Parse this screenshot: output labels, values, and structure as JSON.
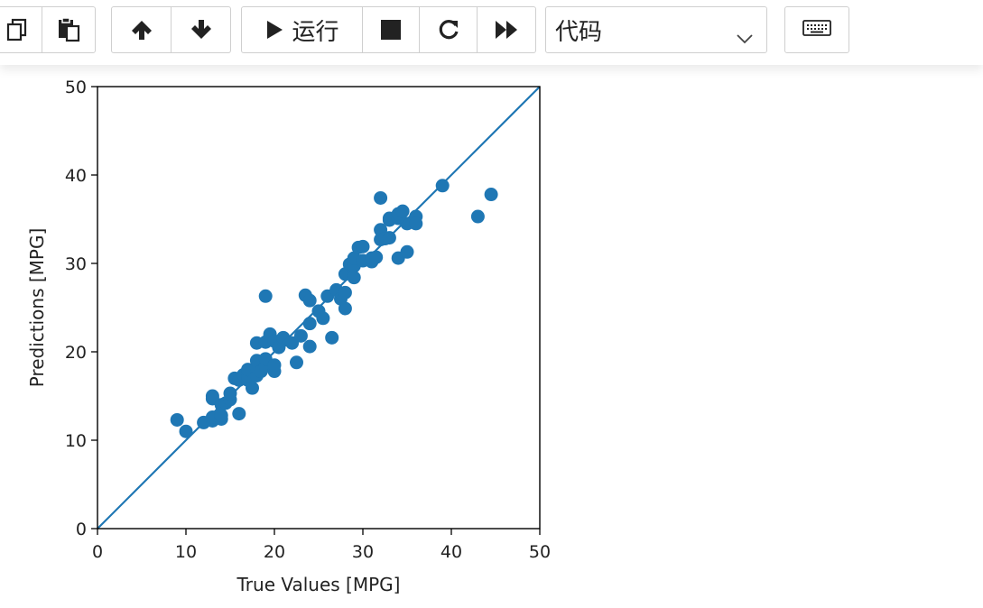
{
  "toolbar": {
    "run_label": "运行",
    "cell_type": "代码",
    "icons": {
      "copy": "copy-icon",
      "paste": "paste-icon",
      "move_up": "arrow-up-icon",
      "move_down": "arrow-down-icon",
      "run": "play-icon",
      "stop": "stop-icon",
      "restart": "restart-icon",
      "run_all": "fast-forward-icon",
      "dropdown": "chevron-down-icon",
      "keyboard": "keyboard-icon"
    }
  },
  "colors": {
    "point": "#1f77b4",
    "line": "#1f77b4"
  },
  "chart_data": {
    "type": "scatter",
    "title": "",
    "xlabel": "True Values [MPG]",
    "ylabel": "Predictions [MPG]",
    "xlim": [
      0,
      50
    ],
    "ylim": [
      0,
      50
    ],
    "xticks": [
      0,
      10,
      20,
      30,
      40,
      50
    ],
    "yticks": [
      0,
      10,
      20,
      30,
      40,
      50
    ],
    "grid": false,
    "reference_line": {
      "x": [
        0,
        50
      ],
      "y": [
        0,
        50
      ]
    },
    "series": [
      {
        "x": [
          9,
          10,
          12,
          13,
          13,
          13,
          13,
          14,
          14,
          14,
          14.5,
          15,
          15,
          15.5,
          16,
          16,
          16.5,
          17,
          17,
          17,
          17.5,
          18,
          18,
          18,
          18,
          18.5,
          19,
          19,
          19,
          19,
          19.5,
          20,
          20,
          20,
          20.5,
          21,
          21,
          22,
          22.5,
          23,
          23.5,
          24,
          24,
          24,
          25,
          25.5,
          26,
          26.5,
          27,
          27.5,
          28,
          28,
          28,
          28.5,
          29,
          29,
          29,
          29.5,
          30,
          30,
          31,
          31,
          31.5,
          32,
          32,
          32,
          32.5,
          33,
          33,
          33,
          34,
          34,
          34,
          34.5,
          35,
          35,
          36,
          36,
          39,
          43,
          44.5
        ],
        "y": [
          12.3,
          11,
          12,
          12.2,
          12.6,
          15,
          14.7,
          12.4,
          12.8,
          14,
          14.2,
          14.6,
          15.3,
          17,
          13,
          16.8,
          17.4,
          16.8,
          17.2,
          18,
          15.9,
          17.3,
          18.2,
          19,
          21,
          17.8,
          18.4,
          19.2,
          21.1,
          26.3,
          22,
          17.8,
          18.5,
          21.2,
          20.5,
          21.3,
          21.6,
          21,
          18.8,
          21.8,
          26.4,
          23.2,
          20.6,
          25.8,
          24.6,
          23.8,
          26.3,
          21.6,
          27,
          26,
          24.9,
          26.7,
          28.8,
          29.9,
          28.4,
          29.7,
          30.6,
          31.8,
          31.9,
          30.3,
          30.2,
          30.6,
          30.7,
          32.7,
          33.8,
          37.4,
          32.8,
          35.1,
          34.9,
          32.9,
          35.1,
          35.6,
          30.6,
          35.9,
          34.5,
          31.3,
          35.3,
          34.5,
          38.8,
          35.3,
          37.8
        ]
      }
    ]
  }
}
